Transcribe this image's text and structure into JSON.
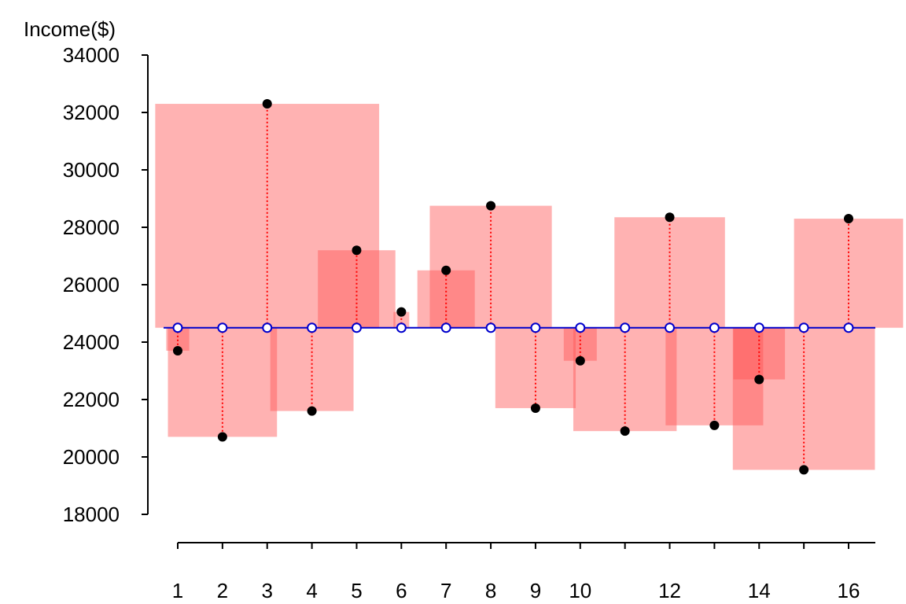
{
  "chart_data": {
    "type": "scatter",
    "title": "",
    "ylabel": "Income($)",
    "xlabel": "",
    "ylim": [
      18000,
      34000
    ],
    "xlim": [
      1,
      16
    ],
    "yticks": [
      "18000",
      "20000",
      "22000",
      "24000",
      "26000",
      "28000",
      "30000",
      "32000",
      "34000"
    ],
    "xticks_labeled": [
      "1",
      "2",
      "3",
      "4",
      "5",
      "6",
      "7",
      "8",
      "9",
      "10",
      "12",
      "14",
      "16"
    ],
    "xticks_marked": [
      1,
      2,
      3,
      4,
      5,
      6,
      7,
      8,
      9,
      10,
      11,
      12,
      13,
      14,
      15,
      16
    ],
    "mean_line": 24500,
    "series": [
      {
        "x": [
          1,
          2,
          3,
          4,
          5,
          6,
          7,
          8,
          9,
          10,
          11,
          12,
          13,
          14,
          15,
          16
        ],
        "values": [
          23700,
          20700,
          32300,
          21600,
          27200,
          25050,
          26500,
          28750,
          21700,
          23350,
          20900,
          28350,
          21100,
          22700,
          19550,
          28300
        ]
      }
    ],
    "grid": false,
    "legend": "none"
  },
  "colors": {
    "points": "#000000",
    "residual_line": "#ff0000",
    "squares": "#ff5555",
    "mean_line": "#0000cc",
    "mean_marker": "#0000cc"
  }
}
